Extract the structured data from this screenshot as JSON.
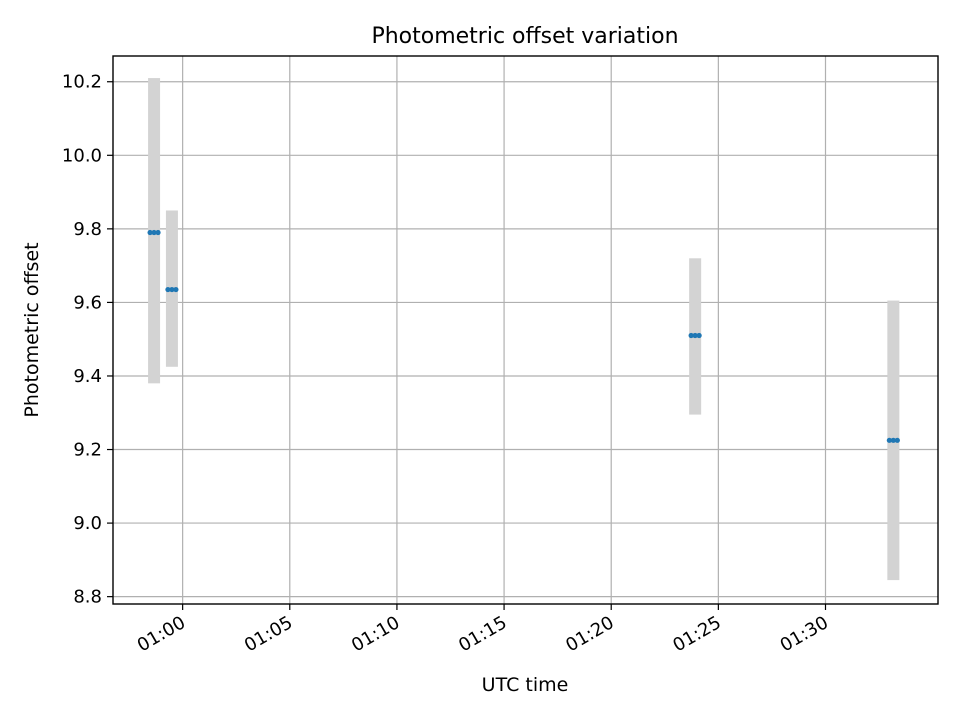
{
  "chart_data": {
    "type": "scatter",
    "title": "Photometric offset variation",
    "xlabel": "UTC time",
    "ylabel": "Photometric offset",
    "x_ticks": [
      "01:00",
      "01:05",
      "01:10",
      "01:15",
      "01:20",
      "01:25",
      "01:30"
    ],
    "x_tick_minutes": [
      60,
      65,
      70,
      75,
      80,
      85,
      90
    ],
    "xlim_minutes": [
      56.75,
      95.25
    ],
    "y_ticks": [
      "8.8",
      "9.0",
      "9.2",
      "9.4",
      "9.6",
      "9.8",
      "10.0",
      "10.2"
    ],
    "ylim": [
      8.78,
      10.27
    ],
    "grid": true,
    "colors": {
      "marker": "#1f77b4",
      "errorbar": "#d3d3d3",
      "grid": "#b0b0b0"
    },
    "series": [
      {
        "points": [
          {
            "x": "00:58:40",
            "y": 9.79,
            "y_low": 9.38,
            "y_high": 10.21
          },
          {
            "x": "00:59:30",
            "y": 9.635,
            "y_low": 9.425,
            "y_high": 9.85
          },
          {
            "x": "01:23:55",
            "y": 9.51,
            "y_low": 9.295,
            "y_high": 9.72
          },
          {
            "x": "01:33:10",
            "y": 9.225,
            "y_low": 8.845,
            "y_high": 9.605
          }
        ]
      }
    ]
  }
}
